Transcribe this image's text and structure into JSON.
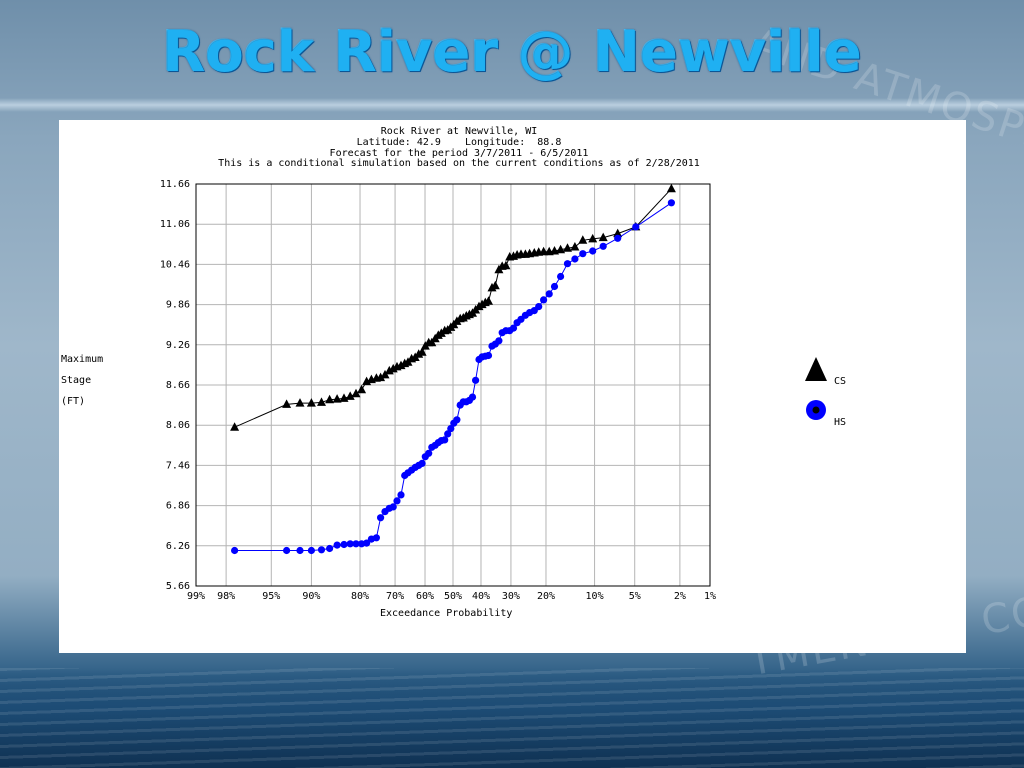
{
  "slide": {
    "title": "Rock River @ Newville",
    "watermark_top": "AND ATMOSPHE",
    "watermark_bottom": "TMENT OF CO"
  },
  "chart_data": {
    "type": "scatter",
    "title": "Rock River at Newville, WI",
    "subtitle_lines": [
      "Latitude: 42.9    Longitude:  88.8",
      "Forecast for the period 3/7/2011 - 6/5/2011",
      "This is a conditional simulation based on the current conditions as of 2/28/2011"
    ],
    "ylabel_lines": [
      "Maximum",
      "Stage",
      "(FT)"
    ],
    "xlabel": "Exceedance Probability",
    "y_ticks": [
      "11.66",
      "11.06",
      "10.46",
      "9.86",
      "9.26",
      "8.66",
      "8.06",
      "7.46",
      "6.86",
      "6.26",
      "5.66"
    ],
    "ylim": [
      5.66,
      11.66
    ],
    "x_ticks": [
      "99%",
      "98%",
      "95%",
      "90%",
      "80%",
      "70%",
      "60%",
      "50%",
      "40%",
      "30%",
      "20%",
      "10%",
      "5%",
      "2%",
      "1%"
    ],
    "x_tick_values": [
      99,
      98,
      95,
      90,
      80,
      70,
      60,
      50,
      40,
      30,
      20,
      10,
      5,
      2,
      1
    ],
    "xlim": [
      99,
      1
    ],
    "x_scale": "normal-probability",
    "grid": true,
    "legend_placement": "right",
    "series": [
      {
        "name": "CS",
        "marker": "triangle",
        "color": "#000000",
        "x": [
          97.6,
          93.4,
          91.7,
          90.0,
          88.3,
          86.8,
          85.3,
          83.8,
          82.4,
          81.0,
          79.6,
          78.3,
          77.0,
          75.6,
          74.4,
          73.1,
          71.8,
          70.6,
          69.4,
          68.1,
          66.9,
          65.8,
          64.6,
          63.4,
          62.2,
          61.0,
          59.9,
          58.7,
          57.6,
          56.4,
          55.3,
          54.2,
          53.0,
          51.9,
          50.8,
          49.7,
          48.6,
          47.4,
          46.3,
          45.2,
          44.1,
          43.0,
          41.9,
          40.7,
          39.6,
          38.5,
          37.4,
          36.2,
          35.1,
          33.9,
          32.8,
          31.6,
          30.4,
          29.2,
          28.1,
          26.9,
          25.6,
          24.4,
          23.1,
          21.9,
          20.6,
          19.2,
          17.9,
          16.5,
          15.0,
          13.5,
          12.0,
          10.3,
          8.7,
          6.8,
          4.9,
          2.4
        ],
        "y": [
          8.03,
          8.37,
          8.39,
          8.39,
          8.4,
          8.44,
          8.45,
          8.46,
          8.49,
          8.53,
          8.59,
          8.71,
          8.74,
          8.76,
          8.77,
          8.81,
          8.87,
          8.9,
          8.93,
          8.95,
          8.98,
          9.0,
          9.05,
          9.07,
          9.12,
          9.15,
          9.24,
          9.29,
          9.29,
          9.35,
          9.4,
          9.43,
          9.47,
          9.48,
          9.52,
          9.56,
          9.61,
          9.65,
          9.66,
          9.69,
          9.71,
          9.73,
          9.78,
          9.83,
          9.86,
          9.89,
          9.91,
          10.11,
          10.14,
          10.38,
          10.43,
          10.44,
          10.57,
          10.58,
          10.6,
          10.61,
          10.61,
          10.62,
          10.63,
          10.64,
          10.65,
          10.65,
          10.66,
          10.68,
          10.7,
          10.72,
          10.82,
          10.84,
          10.86,
          10.92,
          11.02,
          11.59
        ]
      },
      {
        "name": "HS",
        "marker": "circle",
        "color": "#0000ff",
        "x": [
          97.6,
          93.4,
          91.7,
          90.0,
          88.3,
          86.8,
          85.3,
          83.8,
          82.4,
          81.0,
          79.6,
          78.3,
          77.0,
          75.6,
          74.4,
          73.1,
          71.8,
          70.6,
          69.4,
          68.1,
          66.9,
          65.8,
          64.6,
          63.4,
          62.2,
          61.0,
          59.9,
          58.7,
          57.6,
          56.4,
          55.3,
          54.2,
          53.0,
          51.9,
          50.8,
          49.7,
          48.6,
          47.4,
          46.3,
          45.2,
          44.1,
          43.0,
          41.9,
          40.7,
          39.6,
          38.5,
          37.4,
          36.2,
          35.1,
          33.9,
          32.8,
          31.6,
          30.4,
          29.2,
          28.1,
          26.9,
          25.6,
          24.4,
          23.1,
          21.9,
          20.6,
          19.2,
          17.9,
          16.5,
          15.0,
          13.5,
          12.0,
          10.3,
          8.7,
          6.8,
          4.9,
          2.4
        ],
        "y": [
          6.19,
          6.19,
          6.19,
          6.19,
          6.2,
          6.22,
          6.27,
          6.28,
          6.29,
          6.29,
          6.29,
          6.3,
          6.36,
          6.38,
          6.68,
          6.77,
          6.82,
          6.84,
          6.93,
          7.02,
          7.31,
          7.35,
          7.39,
          7.43,
          7.46,
          7.49,
          7.59,
          7.64,
          7.73,
          7.76,
          7.8,
          7.83,
          7.84,
          7.93,
          8.01,
          8.09,
          8.14,
          8.36,
          8.41,
          8.41,
          8.43,
          8.48,
          8.73,
          9.04,
          9.08,
          9.09,
          9.1,
          9.24,
          9.27,
          9.32,
          9.44,
          9.47,
          9.47,
          9.51,
          9.59,
          9.64,
          9.7,
          9.74,
          9.77,
          9.83,
          9.93,
          10.02,
          10.13,
          10.28,
          10.47,
          10.54,
          10.62,
          10.66,
          10.73,
          10.85,
          11.02,
          11.38
        ]
      }
    ]
  }
}
